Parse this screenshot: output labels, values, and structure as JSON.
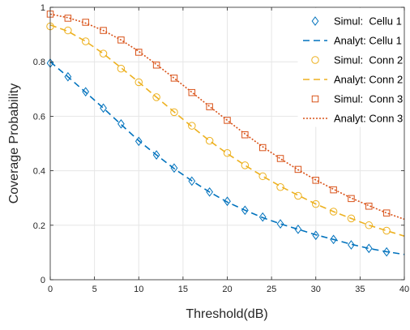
{
  "chart_data": {
    "type": "line",
    "xlabel": "Threshold(dB)",
    "ylabel": "Coverage Probability",
    "xlim": [
      0,
      40
    ],
    "ylim": [
      0,
      1
    ],
    "xticks": [
      "0",
      "5",
      "10",
      "15",
      "20",
      "25",
      "30",
      "35",
      "40"
    ],
    "yticks": [
      "0",
      "0.2",
      "0.4",
      "0.6",
      "0.8",
      "1"
    ],
    "grid": true,
    "legend_position": "top-right",
    "markers_x": [
      0,
      2,
      4,
      6,
      8,
      10,
      12,
      14,
      16,
      18,
      20,
      22,
      24,
      26,
      28,
      30,
      32,
      34,
      36,
      38
    ],
    "series": [
      {
        "name": "Simul:  Cellu 1",
        "style": "markers",
        "marker": "diamond",
        "color": "#0072bd",
        "values": [
          0.795,
          0.745,
          0.69,
          0.63,
          0.572,
          0.508,
          0.458,
          0.41,
          0.362,
          0.322,
          0.288,
          0.255,
          0.23,
          0.205,
          0.185,
          0.163,
          0.148,
          0.128,
          0.115,
          0.102
        ]
      },
      {
        "name": "Analyt: Cellu 1",
        "style": "dashed",
        "color": "#0072bd",
        "x": [
          0,
          2,
          4,
          6,
          8,
          10,
          12,
          14,
          16,
          18,
          20,
          22,
          24,
          26,
          28,
          30,
          32,
          34,
          36,
          38,
          40
        ],
        "values": [
          0.8,
          0.745,
          0.688,
          0.63,
          0.57,
          0.51,
          0.458,
          0.408,
          0.363,
          0.322,
          0.285,
          0.255,
          0.228,
          0.205,
          0.185,
          0.165,
          0.148,
          0.13,
          0.115,
          0.103,
          0.093
        ]
      },
      {
        "name": "Simul:  Conn 2",
        "style": "markers",
        "marker": "circle",
        "color": "#edb120",
        "values": [
          0.93,
          0.915,
          0.875,
          0.83,
          0.775,
          0.725,
          0.67,
          0.615,
          0.565,
          0.51,
          0.465,
          0.42,
          0.38,
          0.34,
          0.308,
          0.278,
          0.25,
          0.225,
          0.2,
          0.18
        ]
      },
      {
        "name": "Analyt: Conn 2",
        "style": "dashed",
        "color": "#edb120",
        "x": [
          0,
          2,
          4,
          6,
          8,
          10,
          12,
          14,
          16,
          18,
          20,
          22,
          24,
          26,
          28,
          30,
          32,
          34,
          36,
          38,
          40
        ],
        "values": [
          0.935,
          0.912,
          0.875,
          0.83,
          0.778,
          0.725,
          0.67,
          0.616,
          0.562,
          0.51,
          0.463,
          0.42,
          0.38,
          0.343,
          0.31,
          0.278,
          0.25,
          0.225,
          0.2,
          0.18,
          0.16
        ]
      },
      {
        "name": "Simul:  Conn 3",
        "style": "markers",
        "marker": "square",
        "color": "#d95319",
        "values": [
          0.975,
          0.96,
          0.945,
          0.915,
          0.88,
          0.835,
          0.788,
          0.74,
          0.687,
          0.635,
          0.585,
          0.532,
          0.485,
          0.445,
          0.405,
          0.365,
          0.33,
          0.298,
          0.27,
          0.245
        ]
      },
      {
        "name": "Analyt: Conn 3",
        "style": "dotted",
        "color": "#d95319",
        "x": [
          0,
          2,
          4,
          6,
          8,
          10,
          12,
          14,
          16,
          18,
          20,
          22,
          24,
          26,
          28,
          30,
          32,
          34,
          36,
          38,
          40
        ],
        "values": [
          0.975,
          0.962,
          0.942,
          0.915,
          0.88,
          0.838,
          0.79,
          0.74,
          0.688,
          0.636,
          0.585,
          0.535,
          0.488,
          0.444,
          0.404,
          0.366,
          0.332,
          0.3,
          0.272,
          0.245,
          0.222
        ]
      }
    ]
  }
}
